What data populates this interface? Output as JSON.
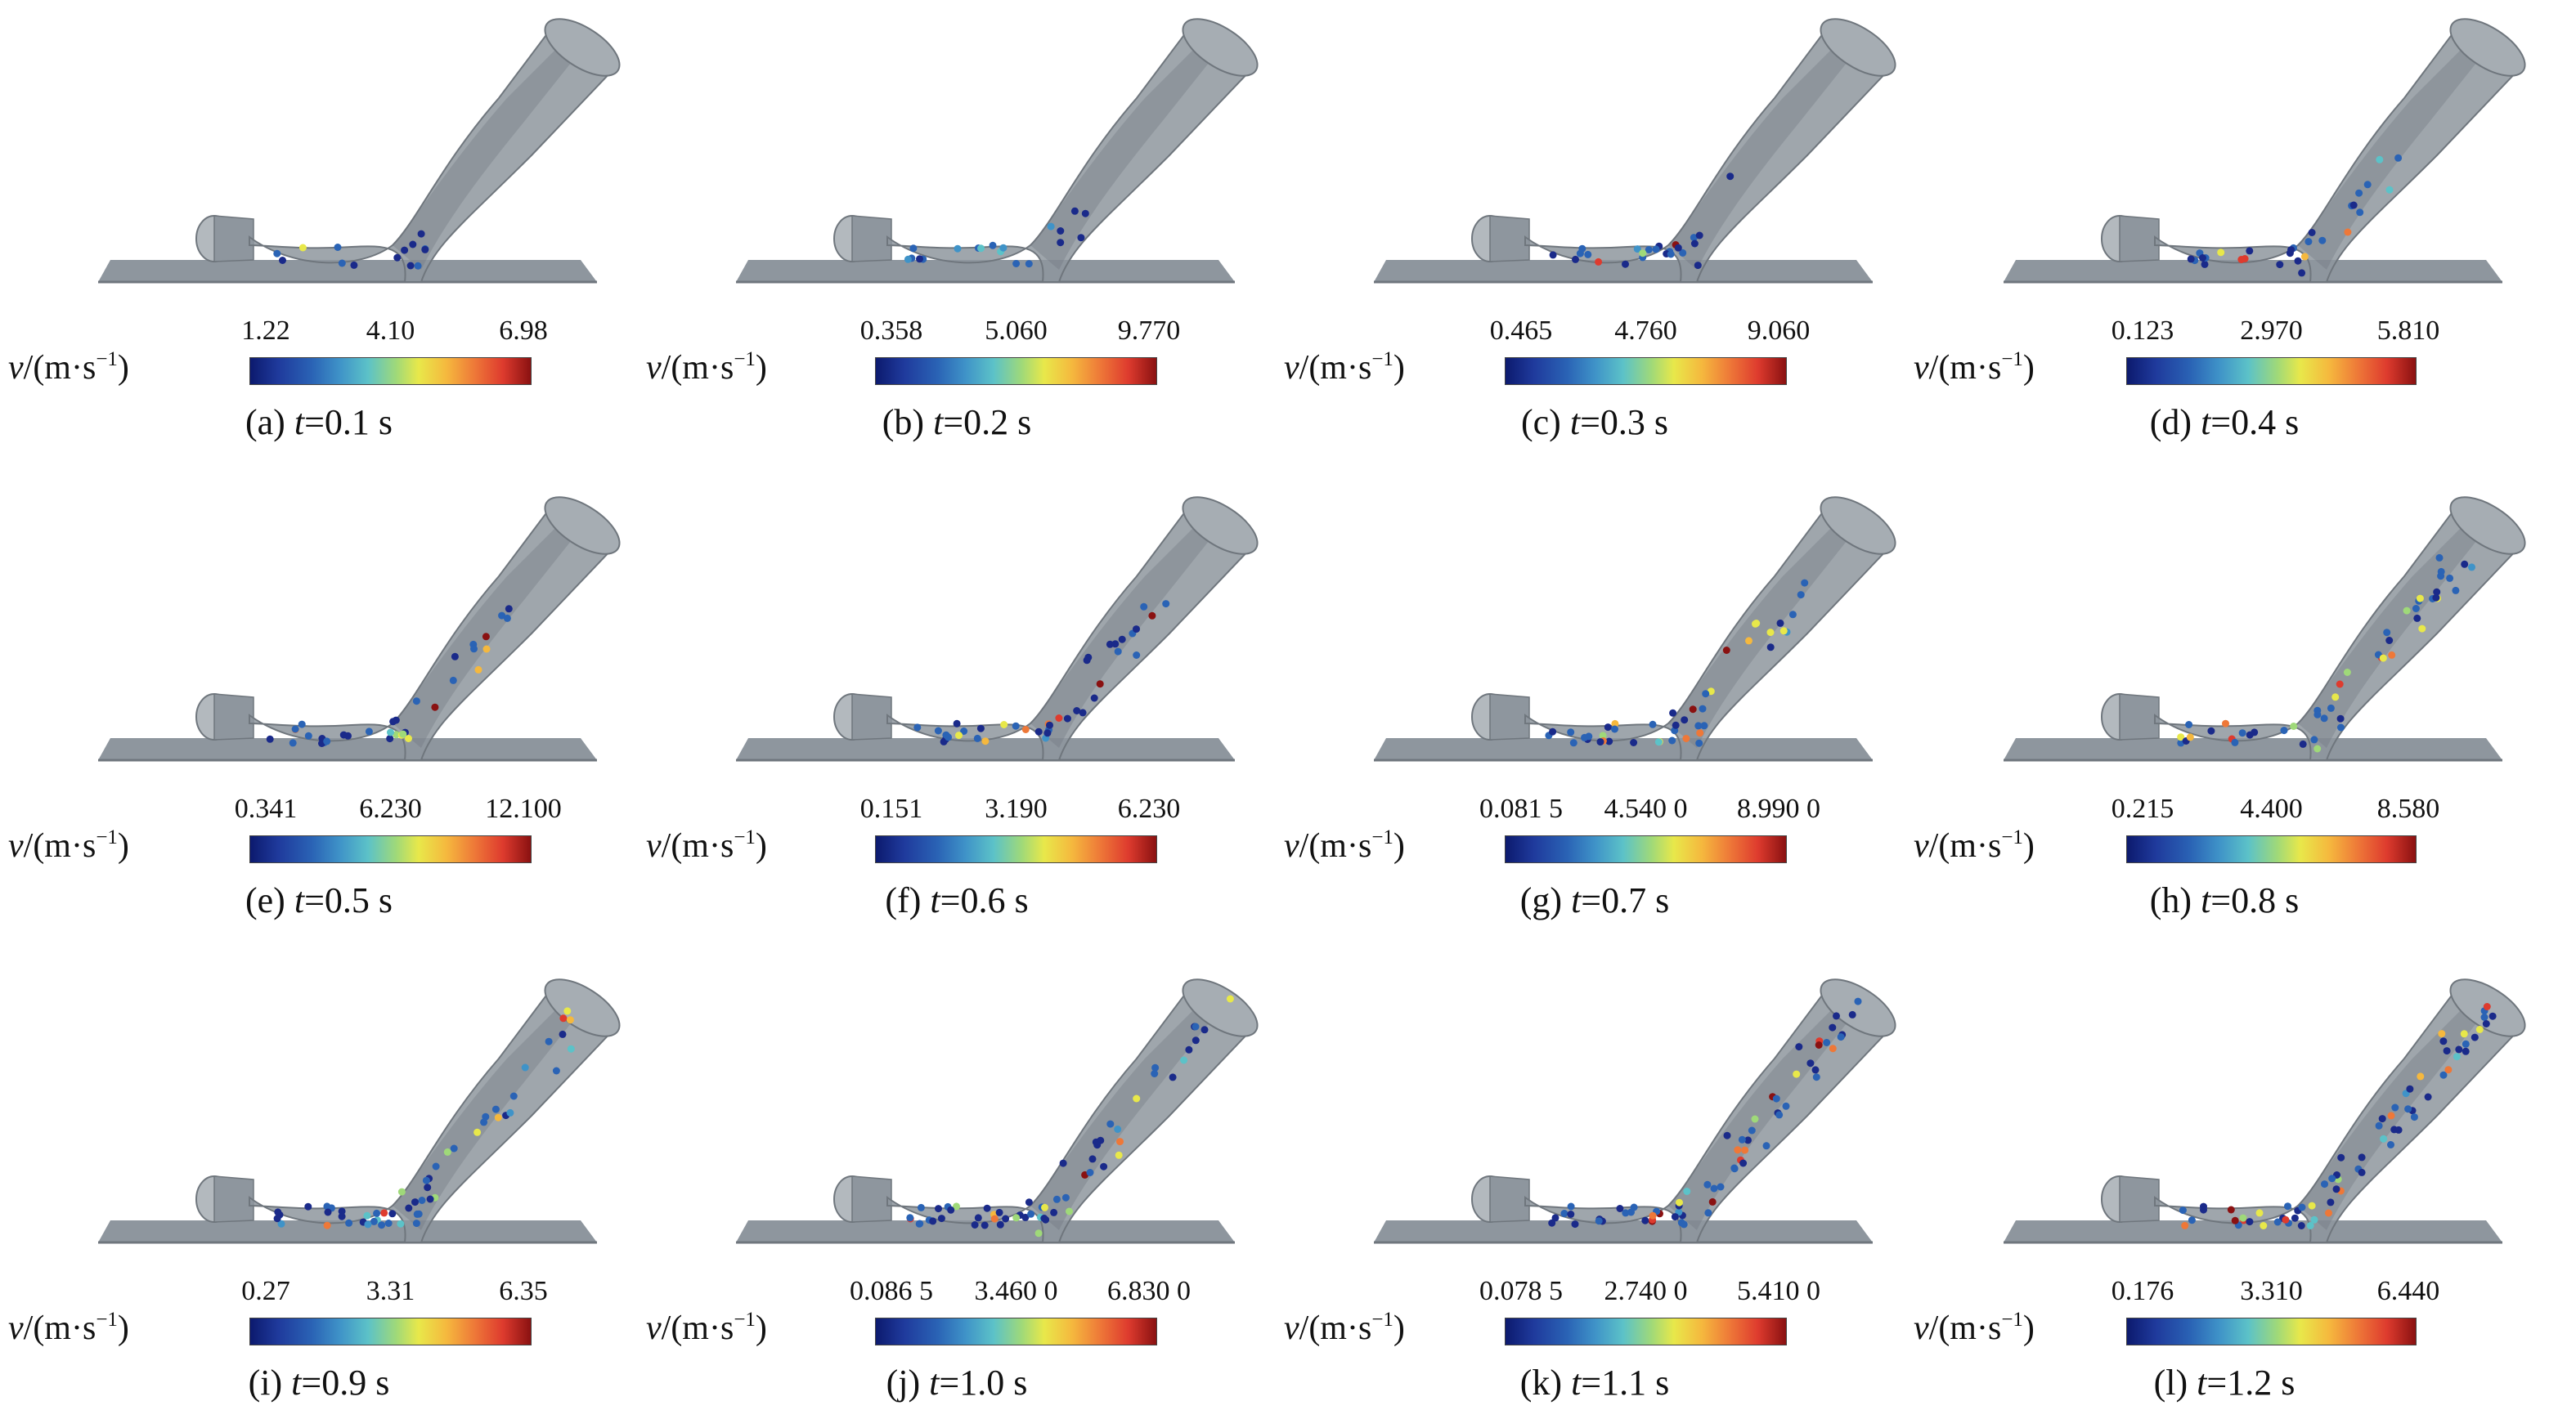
{
  "figure": {
    "panels": [
      {
        "id": "a",
        "ticks": [
          "1.22",
          "4.10",
          "6.98"
        ],
        "caption_prefix": "(a) ",
        "time": "0.1",
        "unit": "s",
        "var": "t"
      },
      {
        "id": "b",
        "ticks": [
          "0.358",
          "5.060",
          "9.770"
        ],
        "caption_prefix": "(b) ",
        "time": "0.2",
        "unit": "s",
        "var": "t"
      },
      {
        "id": "c",
        "ticks": [
          "0.465",
          "4.760",
          "9.060"
        ],
        "caption_prefix": "(c) ",
        "time": "0.3",
        "unit": "s",
        "var": "t"
      },
      {
        "id": "d",
        "ticks": [
          "0.123",
          "2.970",
          "5.810"
        ],
        "caption_prefix": "(d) ",
        "time": "0.4",
        "unit": "s",
        "var": "t"
      },
      {
        "id": "e",
        "ticks": [
          "0.341",
          "6.230",
          "12.100"
        ],
        "caption_prefix": "(e) ",
        "time": "0.5",
        "unit": "s",
        "var": "t"
      },
      {
        "id": "f",
        "ticks": [
          "0.151",
          "3.190",
          "6.230"
        ],
        "caption_prefix": "(f) ",
        "time": "0.6",
        "unit": "s",
        "var": "t"
      },
      {
        "id": "g",
        "ticks": [
          "0.081 5",
          "4.540 0",
          "8.990 0"
        ],
        "caption_prefix": "(g) ",
        "time": "0.7",
        "unit": "s",
        "var": "t"
      },
      {
        "id": "h",
        "ticks": [
          "0.215",
          "4.400",
          "8.580"
        ],
        "caption_prefix": "(h) ",
        "time": "0.8",
        "unit": "s",
        "var": "t"
      },
      {
        "id": "i",
        "ticks": [
          "0.27",
          "3.31",
          "6.35"
        ],
        "caption_prefix": "(i) ",
        "time": "0.9",
        "unit": "s",
        "var": "t"
      },
      {
        "id": "j",
        "ticks": [
          "0.086 5",
          "3.460 0",
          "6.830 0"
        ],
        "caption_prefix": "(j) ",
        "time": "1.0",
        "unit": "s",
        "var": "t"
      },
      {
        "id": "k",
        "ticks": [
          "0.078 5",
          "2.740 0",
          "5.410 0"
        ],
        "caption_prefix": "(k) ",
        "time": "1.1",
        "unit": "s",
        "var": "t"
      },
      {
        "id": "l",
        "ticks": [
          "0.176",
          "3.310",
          "6.440"
        ],
        "caption_prefix": "(l) ",
        "time": "1.2",
        "unit": "s",
        "var": "t"
      }
    ],
    "colorbar_label": {
      "var": "v",
      "unit_open": "/(m·s",
      "exponent": "−1",
      "unit_close": ")"
    },
    "colormap": [
      "#1a2a8a",
      "#2a63b5",
      "#3f93c8",
      "#5cc2c8",
      "#9fd979",
      "#e8e84a",
      "#f5b83e",
      "#ee7838",
      "#de3b2e",
      "#8a1111"
    ],
    "colors": {
      "geometry": "#8e969e",
      "geometry_dark": "#6f767d",
      "geometry_light": "#b3b9be"
    }
  }
}
